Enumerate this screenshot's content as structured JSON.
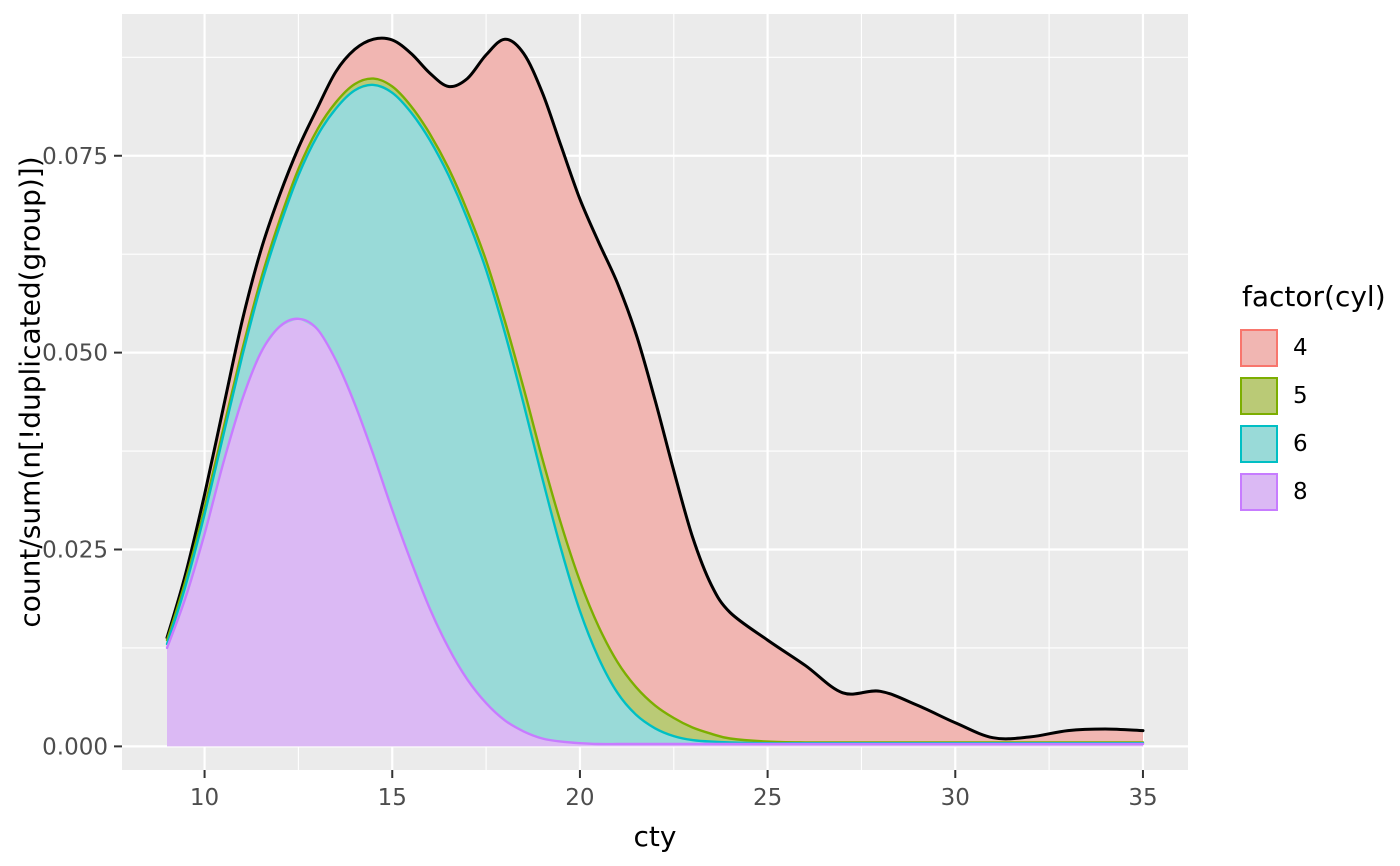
{
  "figure": {
    "background": "#FFFFFF",
    "panel_background": "#EBEBEB",
    "grid_color": "#FFFFFF",
    "tick_color": "#333333",
    "tick_label_color": "#4D4D4D",
    "axis_title_color": "#000000"
  },
  "legend": {
    "title": "factor(cyl)",
    "items": [
      {
        "label": "4",
        "fill": "#F1B6B2",
        "stroke": "#F8766D"
      },
      {
        "label": "5",
        "fill": "#BACA76",
        "stroke": "#7CAE00"
      },
      {
        "label": "6",
        "fill": "#99DAD8",
        "stroke": "#00BFC4"
      },
      {
        "label": "8",
        "fill": "#DBB9F4",
        "stroke": "#C77CFF"
      }
    ]
  },
  "chart_data": {
    "type": "area",
    "stat": "density",
    "position": "stack",
    "title": "",
    "xlabel": "cty",
    "ylabel": "count/sum(n[!duplicated(group)])",
    "legend_title": "factor(cyl)",
    "legend_position": "right",
    "grid": true,
    "x_domain": [
      7.8,
      36.2
    ],
    "y_domain": [
      -0.003,
      0.093
    ],
    "x_ticks": {
      "values": [
        10,
        15,
        20,
        25,
        30,
        35
      ],
      "labels": [
        "10",
        "15",
        "20",
        "25",
        "30",
        "35"
      ],
      "minor": [
        12.5,
        17.5,
        22.5,
        27.5,
        32.5
      ]
    },
    "y_ticks": {
      "values": [
        0,
        0.025,
        0.05,
        0.075
      ],
      "labels": [
        "0.000",
        "0.025",
        "0.050",
        "0.075"
      ],
      "minor": [
        0.0125,
        0.0375,
        0.0625,
        0.0875
      ]
    },
    "x": [
      9,
      9.5,
      10,
      10.5,
      11,
      11.5,
      12,
      12.5,
      13,
      13.5,
      14,
      14.5,
      15,
      15.5,
      16,
      16.5,
      17,
      17.5,
      18,
      18.5,
      19,
      19.5,
      20,
      20.5,
      21,
      21.5,
      22,
      22.5,
      23,
      23.5,
      24,
      25,
      26,
      27,
      28,
      29,
      30,
      31,
      32,
      33,
      34,
      35
    ],
    "values_are": "cumulative_upper_boundary_of_stacked_density",
    "series": [
      {
        "name": "8",
        "fill_blended": "#DBB9F4",
        "stroke": "#C77CFF",
        "cum_upper": [
          0.0125,
          0.019,
          0.027,
          0.036,
          0.044,
          0.05,
          0.0533,
          0.0543,
          0.053,
          0.049,
          0.0435,
          0.037,
          0.03,
          0.0235,
          0.0175,
          0.0125,
          0.0085,
          0.0055,
          0.0033,
          0.0019,
          0.001,
          0.0006,
          0.0004,
          0.0003,
          0.0003,
          0.0003,
          0.0003,
          0.0003,
          0.0003,
          0.0003,
          0.0003,
          0.0003,
          0.0003,
          0.0003,
          0.0003,
          0.0003,
          0.0003,
          0.0003,
          0.0003,
          0.0003,
          0.0003,
          0.0003
        ]
      },
      {
        "name": "6",
        "fill_blended": "#99DAD8",
        "stroke": "#00BFC4",
        "cum_upper": [
          0.013,
          0.0205,
          0.0295,
          0.0395,
          0.0495,
          0.0585,
          0.066,
          0.0725,
          0.0775,
          0.081,
          0.0833,
          0.084,
          0.083,
          0.0805,
          0.077,
          0.0725,
          0.067,
          0.0605,
          0.0525,
          0.0435,
          0.034,
          0.025,
          0.0172,
          0.0112,
          0.0068,
          0.004,
          0.0023,
          0.0013,
          0.0008,
          0.0006,
          0.0005,
          0.0004,
          0.0004,
          0.0004,
          0.0004,
          0.0004,
          0.0004,
          0.0004,
          0.0004,
          0.0004,
          0.0004,
          0.0004
        ]
      },
      {
        "name": "5",
        "fill_blended": "#BACA76",
        "stroke": "#7CAE00",
        "cum_upper": [
          0.0135,
          0.0212,
          0.0303,
          0.0403,
          0.0503,
          0.0593,
          0.0668,
          0.0733,
          0.0783,
          0.0818,
          0.0841,
          0.0848,
          0.0838,
          0.0813,
          0.0778,
          0.0734,
          0.068,
          0.0617,
          0.054,
          0.0455,
          0.0365,
          0.0282,
          0.021,
          0.0152,
          0.0107,
          0.0075,
          0.0052,
          0.0036,
          0.0024,
          0.0016,
          0.001,
          0.0006,
          0.0005,
          0.0005,
          0.0005,
          0.0005,
          0.0005,
          0.0005,
          0.0005,
          0.0005,
          0.0005,
          0.0005
        ]
      },
      {
        "name": "4",
        "fill_blended": "#F1B6B2",
        "stroke": "#000000",
        "cum_upper": [
          0.0138,
          0.022,
          0.032,
          0.043,
          0.054,
          0.063,
          0.07,
          0.076,
          0.081,
          0.0857,
          0.0885,
          0.0898,
          0.0897,
          0.088,
          0.0855,
          0.0838,
          0.0848,
          0.0878,
          0.0898,
          0.088,
          0.083,
          0.0762,
          0.0695,
          0.064,
          0.0588,
          0.0523,
          0.044,
          0.035,
          0.0266,
          0.0205,
          0.017,
          0.0135,
          0.0103,
          0.0068,
          0.007,
          0.0052,
          0.003,
          0.0011,
          0.0012,
          0.002,
          0.0022,
          0.002
        ]
      }
    ]
  }
}
